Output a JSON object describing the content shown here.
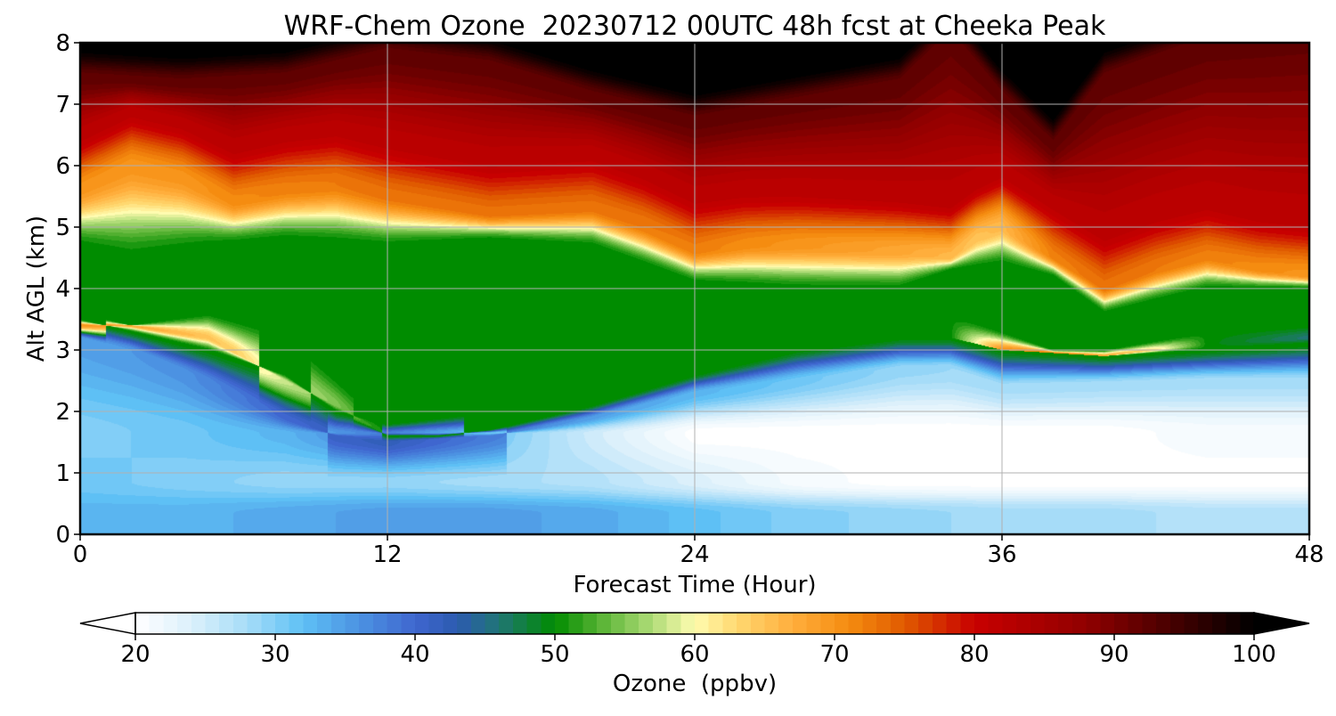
{
  "chart_data": {
    "type": "heatmap",
    "title": "WRF-Chem Ozone  20230712 00UTC 48h fcst at Cheeka Peak",
    "xlabel": "Forecast Time (Hour)",
    "ylabel": "Alt AGL (km)",
    "xlim": [
      0,
      48
    ],
    "ylim": [
      0,
      8
    ],
    "xticks": [
      "0",
      "12",
      "24",
      "36",
      "48"
    ],
    "yticks": [
      "0",
      "1",
      "2",
      "3",
      "4",
      "5",
      "6",
      "7",
      "8"
    ],
    "grid": true,
    "x": [
      0,
      2,
      4,
      6,
      8,
      10,
      12,
      14,
      16,
      18,
      20,
      22,
      24,
      26,
      28,
      30,
      32,
      34,
      36,
      38,
      40,
      42,
      44,
      46,
      48
    ],
    "y": [
      0,
      0.25,
      0.5,
      0.75,
      1,
      1.25,
      1.5,
      1.75,
      2,
      2.25,
      2.5,
      2.75,
      3,
      3.25,
      3.5,
      3.75,
      4,
      4.25,
      4.5,
      4.75,
      5,
      5.25,
      5.5,
      5.75,
      6,
      6.25,
      6.5,
      6.75,
      7,
      7.25,
      7.5,
      7.75,
      8
    ],
    "profiles": {
      "bl": {
        "x": [
          0,
          4,
          8,
          12,
          16,
          20,
          24,
          28,
          32,
          36,
          40,
          44,
          48
        ],
        "v": [
          33,
          33,
          34,
          35,
          35,
          34,
          32,
          30,
          29,
          28,
          28,
          27,
          27
        ]
      },
      "lo": {
        "x": [
          0,
          4,
          8,
          12,
          16,
          20,
          24,
          28,
          32,
          36,
          40,
          44,
          48
        ],
        "v": [
          31,
          30,
          29,
          29,
          28,
          27,
          24,
          21,
          20,
          20,
          20,
          20,
          20
        ]
      },
      "mid": {
        "x": [
          0,
          4,
          8,
          12,
          16,
          20,
          24,
          28,
          32,
          36,
          40,
          44,
          48
        ],
        "v": [
          30,
          31,
          33,
          38,
          31,
          25,
          20,
          20,
          20,
          20,
          20,
          21,
          21
        ]
      },
      "blue": {
        "x": [
          0,
          4,
          8,
          12,
          16,
          20,
          24,
          28,
          32,
          36,
          40,
          44,
          48
        ],
        "v": [
          35,
          36,
          40,
          42,
          38,
          35,
          33,
          31,
          29,
          28,
          28,
          28,
          28
        ]
      },
      "zb1": {
        "x": [
          0,
          2,
          5,
          8,
          10,
          12,
          16,
          20,
          24,
          28,
          32,
          34,
          36,
          40,
          44,
          48
        ],
        "y": [
          3.2,
          3.0,
          2.5,
          1.9,
          1.6,
          1.5,
          1.6,
          1.9,
          2.3,
          2.5,
          2.7,
          2.7,
          2.4,
          2.45,
          2.5,
          2.5
        ]
      },
      "zt1": {
        "x": [
          0,
          2,
          5,
          8,
          10,
          12,
          16,
          20,
          24,
          28,
          32,
          34,
          36,
          40,
          44,
          48
        ],
        "y": [
          3.5,
          3.3,
          3.0,
          2.6,
          2.0,
          1.8,
          2.0,
          2.3,
          2.9,
          3.2,
          3.3,
          3.2,
          3.0,
          2.9,
          3.0,
          3.1
        ]
      },
      "low": {
        "x": [
          0,
          2,
          5,
          8,
          10,
          12,
          14,
          16,
          20,
          24,
          28,
          32,
          34,
          36,
          40,
          44,
          48
        ],
        "y": [
          3.4,
          3.4,
          3.2,
          2.5,
          2.1,
          1.6,
          1.6,
          1.7,
          2.1,
          2.6,
          3.0,
          3.2,
          3.2,
          3.0,
          2.9,
          3.1,
          3.2
        ]
      },
      "low_v": {
        "x": [
          0,
          2,
          4,
          6,
          7,
          8,
          10,
          12,
          16,
          20,
          24,
          28,
          32,
          34,
          36,
          38,
          40,
          42,
          44,
          46,
          48
        ],
        "v": [
          70,
          68,
          66,
          64,
          61,
          58,
          55,
          50,
          50,
          50,
          50,
          50,
          50,
          50,
          70,
          72,
          68,
          62,
          50,
          48,
          46
        ]
      },
      "zb2": {
        "x": [
          0,
          2,
          5,
          8,
          12,
          16,
          20,
          24,
          28,
          32,
          34,
          36,
          38,
          40,
          44,
          48
        ],
        "y": [
          3.6,
          3.4,
          3.6,
          3.3,
          1.8,
          2.0,
          2.3,
          3.0,
          3.4,
          3.6,
          3.6,
          3.3,
          3.0,
          3.0,
          3.3,
          3.4
        ]
      },
      "zt2": {
        "x": [
          0,
          2,
          5,
          8,
          12,
          16,
          20,
          24,
          28,
          32,
          34,
          36,
          38,
          40,
          44,
          48
        ],
        "y": [
          4.7,
          4.5,
          4.7,
          4.8,
          4.7,
          4.8,
          4.7,
          4.1,
          4.0,
          4.0,
          4.3,
          4.4,
          4.2,
          3.6,
          4.0,
          4.0
        ]
      },
      "hi": {
        "x": [
          0,
          2,
          4,
          6,
          8,
          10,
          12,
          16,
          20,
          22,
          24,
          26,
          28,
          32,
          34,
          35,
          36,
          38,
          40,
          42,
          44,
          46,
          48
        ],
        "y": [
          5.6,
          6.0,
          5.8,
          5.4,
          5.6,
          5.7,
          5.5,
          5.2,
          5.3,
          5.0,
          4.6,
          4.7,
          4.7,
          4.6,
          4.5,
          4.8,
          5.0,
          4.5,
          4.0,
          4.3,
          4.5,
          4.3,
          4.2
        ]
      },
      "hi_v": {
        "x": [
          0,
          4,
          8,
          12,
          20,
          24,
          28,
          32,
          34,
          35,
          36,
          38,
          40,
          44,
          48
        ],
        "v": [
          70,
          70,
          72,
          73,
          73,
          72,
          70,
          68,
          66,
          65,
          66,
          72,
          73,
          72,
          70
        ]
      },
      "dk": {
        "x": [
          0,
          4,
          8,
          12,
          16,
          20,
          24,
          28,
          32,
          34,
          36,
          38,
          40,
          44,
          48
        ],
        "y": [
          7.9,
          7.8,
          7.9,
          8.3,
          8.1,
          7.6,
          7.2,
          7.5,
          7.8,
          8.6,
          7.6,
          6.8,
          7.9,
          8.5,
          8.7
        ]
      }
    }
  },
  "colorbar": {
    "label": "Ozone  (ppbv)",
    "min": 20,
    "max": 100,
    "tick_labels": [
      "20",
      "30",
      "40",
      "50",
      "60",
      "70",
      "80",
      "90",
      "100"
    ],
    "extend": "both",
    "stops": [
      {
        "v": 20,
        "c": "#ffffff"
      },
      {
        "v": 24,
        "c": "#dcf0fb"
      },
      {
        "v": 28,
        "c": "#a6dcf8"
      },
      {
        "v": 32,
        "c": "#5ec0f5"
      },
      {
        "v": 36,
        "c": "#4c92e2"
      },
      {
        "v": 40,
        "c": "#3f66cf"
      },
      {
        "v": 43,
        "c": "#2c5bb0"
      },
      {
        "v": 46,
        "c": "#207575"
      },
      {
        "v": 50,
        "c": "#008c00"
      },
      {
        "v": 53,
        "c": "#52b030"
      },
      {
        "v": 57,
        "c": "#b0dc78"
      },
      {
        "v": 60,
        "c": "#fffcb0"
      },
      {
        "v": 63,
        "c": "#ffd870"
      },
      {
        "v": 67,
        "c": "#ffae3c"
      },
      {
        "v": 71,
        "c": "#f58c10"
      },
      {
        "v": 75,
        "c": "#e05a00"
      },
      {
        "v": 80,
        "c": "#c80000"
      },
      {
        "v": 88,
        "c": "#900000"
      },
      {
        "v": 95,
        "c": "#3c0000"
      },
      {
        "v": 100,
        "c": "#000000"
      }
    ]
  }
}
